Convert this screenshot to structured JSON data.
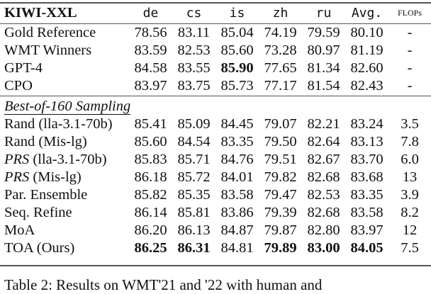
{
  "table": {
    "header": [
      "KIWI-XXL",
      "de",
      "cs",
      "is",
      "zh",
      "ru",
      "Avg.",
      "FLOPs"
    ],
    "group1": [
      {
        "label": "Gold Reference",
        "values": [
          "78.56",
          "83.11",
          "85.04",
          "74.19",
          "79.59",
          "80.10",
          "-"
        ],
        "bold": []
      },
      {
        "label": "WMT Winners",
        "values": [
          "83.59",
          "82.53",
          "85.60",
          "73.28",
          "80.97",
          "81.19",
          "-"
        ],
        "bold": []
      },
      {
        "label": "GPT-4",
        "values": [
          "84.58",
          "83.55",
          "85.90",
          "77.65",
          "81.34",
          "82.60",
          "-"
        ],
        "bold": [
          2
        ]
      },
      {
        "label": "CPO",
        "values": [
          "83.97",
          "83.75",
          "85.73",
          "77.17",
          "81.54",
          "82.43",
          "-"
        ],
        "bold": []
      }
    ],
    "section_label": "Best-of-160 Sampling",
    "group2": [
      {
        "label_prefix": "",
        "label": "Rand (lla-3.1-70b)",
        "values": [
          "85.41",
          "85.09",
          "84.45",
          "79.07",
          "82.21",
          "83.24",
          "3.5"
        ],
        "bold": []
      },
      {
        "label_prefix": "",
        "label": "Rand (Mis-lg)",
        "values": [
          "85.60",
          "84.54",
          "83.35",
          "79.50",
          "82.64",
          "83.13",
          "7.8"
        ],
        "bold": []
      },
      {
        "label_prefix": "PRS",
        "label": " (lla-3.1-70b)",
        "values": [
          "85.83",
          "85.71",
          "84.76",
          "79.51",
          "82.67",
          "83.70",
          "6.0"
        ],
        "bold": []
      },
      {
        "label_prefix": "PRS",
        "label": " (Mis-lg)",
        "values": [
          "86.18",
          "85.72",
          "84.01",
          "79.82",
          "82.68",
          "83.68",
          "13"
        ],
        "bold": []
      },
      {
        "label_prefix": "",
        "label": "Par. Ensemble",
        "values": [
          "85.82",
          "85.35",
          "83.58",
          "79.47",
          "82.53",
          "83.35",
          "3.9"
        ],
        "bold": []
      },
      {
        "label_prefix": "",
        "label": "Seq. Refine",
        "values": [
          "86.14",
          "85.81",
          "83.86",
          "79.39",
          "82.68",
          "83.58",
          "8.2"
        ],
        "bold": []
      },
      {
        "label_prefix": "",
        "label": "MoA",
        "values": [
          "86.20",
          "86.13",
          "84.87",
          "79.87",
          "82.80",
          "83.97",
          "12"
        ],
        "bold": []
      },
      {
        "label_prefix": "",
        "label": "TOA (Ours)",
        "values": [
          "86.25",
          "86.31",
          "84.81",
          "79.89",
          "83.00",
          "84.05",
          "7.5"
        ],
        "bold": [
          0,
          1,
          3,
          4,
          5
        ]
      }
    ]
  },
  "caption": "Table 2: Results on WMT'21 and '22 with human and"
}
